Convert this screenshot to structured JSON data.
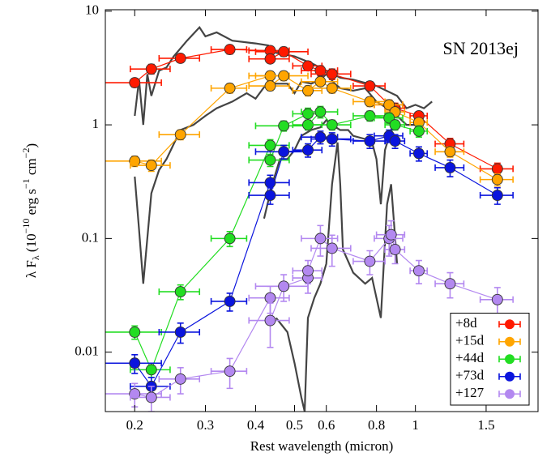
{
  "chart_data": {
    "type": "scatter",
    "annotation": "SN 2013ej",
    "xlabel": "Rest wavelength (micron)",
    "ylabel": [
      "λ F",
      "λ",
      " (10",
      "−10",
      " erg s",
      "−1",
      " cm",
      "−2",
      ")"
    ],
    "xscale": "log",
    "yscale": "log",
    "xlim": [
      0.169,
      2.02
    ],
    "ylim": [
      0.003,
      10.3
    ],
    "xticks": [
      0.2,
      0.3,
      0.4,
      0.5,
      0.6,
      0.8,
      1,
      1.5
    ],
    "yticks": [
      0.01,
      0.1,
      1,
      10
    ],
    "legend": "lower right",
    "spectra_color": "#444444",
    "spectra": [
      {
        "x": [
          0.2,
          0.205,
          0.21,
          0.215,
          0.22,
          0.23,
          0.24,
          0.25,
          0.27,
          0.29,
          0.3,
          0.32,
          0.35,
          0.4,
          0.43,
          0.45,
          0.5,
          0.55,
          0.6,
          0.65,
          0.7,
          0.8,
          0.9,
          0.95,
          1.0,
          1.05,
          1.1
        ],
        "values": [
          1.2,
          2.5,
          1.0,
          2.8,
          1.8,
          3.0,
          3.2,
          4.0,
          5.5,
          7.2,
          6.0,
          6.5,
          5.5,
          5.2,
          5.0,
          4.3,
          4.0,
          3.5,
          3.0,
          2.6,
          2.5,
          2.2,
          1.8,
          1.4,
          1.5,
          1.4,
          1.6
        ]
      },
      {
        "x": [
          0.2,
          0.205,
          0.21,
          0.22,
          0.23,
          0.24,
          0.26,
          0.28,
          0.3,
          0.32,
          0.35,
          0.38,
          0.4,
          0.43,
          0.45,
          0.48,
          0.5,
          0.52,
          0.55,
          0.58,
          0.6,
          0.63,
          0.65,
          0.7,
          0.75,
          0.8,
          0.85,
          0.9,
          0.95,
          1.0
        ],
        "values": [
          0.35,
          0.12,
          0.04,
          0.25,
          0.4,
          0.5,
          0.9,
          1.0,
          1.2,
          1.4,
          1.6,
          1.9,
          1.7,
          2.4,
          2.3,
          2.3,
          1.9,
          2.4,
          2.3,
          2.5,
          2.8,
          2.3,
          2.1,
          2.0,
          2.1,
          1.6,
          1.4,
          1.2,
          1.0,
          1.0
        ]
      },
      {
        "x": [
          0.42,
          0.44,
          0.46,
          0.48,
          0.5,
          0.52,
          0.55,
          0.58,
          0.6,
          0.62,
          0.65,
          0.68,
          0.7,
          0.75,
          0.78,
          0.8,
          0.82,
          0.84,
          0.87,
          0.9
        ],
        "values": [
          0.15,
          0.3,
          0.5,
          0.5,
          0.6,
          0.8,
          0.9,
          0.95,
          1.1,
          1.0,
          0.9,
          0.9,
          0.8,
          0.75,
          0.7,
          0.5,
          0.2,
          0.6,
          0.9,
          0.7
        ]
      },
      {
        "x": [
          0.45,
          0.48,
          0.5,
          0.52,
          0.53,
          0.54,
          0.56,
          0.58,
          0.6,
          0.62,
          0.64,
          0.65,
          0.66,
          0.7,
          0.75,
          0.78,
          0.8,
          0.82,
          0.85,
          0.87,
          0.9
        ],
        "values": [
          0.02,
          0.015,
          0.008,
          0.004,
          0.003,
          0.02,
          0.03,
          0.04,
          0.06,
          0.3,
          0.7,
          0.3,
          0.08,
          0.05,
          0.04,
          0.045,
          0.03,
          0.02,
          0.2,
          0.3,
          0.06
        ]
      }
    ],
    "series": [
      {
        "name": "+8d",
        "color": "#ff1a00",
        "x": [
          0.2,
          0.22,
          0.26,
          0.345,
          0.435,
          0.435,
          0.47,
          0.54,
          0.58,
          0.62,
          0.77,
          0.86,
          0.89,
          1.02,
          1.22,
          1.6
        ],
        "values": [
          2.35,
          3.1,
          3.85,
          4.6,
          4.5,
          3.8,
          4.4,
          3.3,
          3.0,
          2.8,
          2.2,
          1.5,
          1.4,
          1.2,
          0.68,
          0.41
        ],
        "xerr": [
          0.033,
          0.025,
          0.03,
          0.035,
          0.05,
          0.05,
          0.07,
          0.045,
          0.06,
          0.07,
          0.07,
          0.07,
          0.05,
          0.05,
          0.1,
          0.15
        ],
        "yerr": [
          0.2,
          0.3,
          0.3,
          0.4,
          0.4,
          0.3,
          0.4,
          0.3,
          0.3,
          0.3,
          0.2,
          0.15,
          0.15,
          0.1,
          0.08,
          0.05
        ]
      },
      {
        "name": "+15d",
        "color": "#ffa500",
        "x": [
          0.2,
          0.22,
          0.26,
          0.345,
          0.435,
          0.435,
          0.47,
          0.54,
          0.58,
          0.62,
          0.77,
          0.86,
          0.89,
          1.02,
          1.22,
          1.6
        ],
        "values": [
          0.48,
          0.44,
          0.82,
          2.1,
          2.7,
          2.2,
          2.7,
          2.0,
          2.4,
          2.1,
          1.6,
          1.5,
          1.3,
          1.05,
          0.58,
          0.33
        ],
        "xerr": [
          0.033,
          0.025,
          0.03,
          0.035,
          0.05,
          0.05,
          0.07,
          0.045,
          0.06,
          0.07,
          0.07,
          0.07,
          0.05,
          0.05,
          0.1,
          0.15
        ],
        "yerr": [
          0.05,
          0.05,
          0.08,
          0.2,
          0.25,
          0.2,
          0.25,
          0.2,
          0.2,
          0.2,
          0.15,
          0.15,
          0.12,
          0.1,
          0.06,
          0.04
        ]
      },
      {
        "name": "+44d",
        "color": "#22dd22",
        "x": [
          0.2,
          0.22,
          0.26,
          0.345,
          0.435,
          0.435,
          0.47,
          0.54,
          0.54,
          0.58,
          0.62,
          0.77,
          0.86,
          0.89,
          1.02
        ],
        "values": [
          0.015,
          0.007,
          0.034,
          0.1,
          0.66,
          0.49,
          0.98,
          1.25,
          1.0,
          1.3,
          1.0,
          1.2,
          1.15,
          1.0,
          0.88
        ],
        "xerr": [
          0.033,
          0.025,
          0.03,
          0.035,
          0.05,
          0.05,
          0.07,
          0.045,
          0.045,
          0.06,
          0.07,
          0.07,
          0.07,
          0.05,
          0.05
        ],
        "yerr": [
          0.002,
          0.001,
          0.005,
          0.015,
          0.08,
          0.06,
          0.1,
          0.15,
          0.1,
          0.15,
          0.1,
          0.12,
          0.12,
          0.1,
          0.1
        ]
      },
      {
        "name": "+73d",
        "color": "#0a14dd",
        "x": [
          0.2,
          0.22,
          0.26,
          0.345,
          0.435,
          0.435,
          0.47,
          0.54,
          0.58,
          0.62,
          0.77,
          0.86,
          0.89,
          1.02,
          1.22,
          1.6
        ],
        "values": [
          0.008,
          0.005,
          0.015,
          0.028,
          0.31,
          0.24,
          0.58,
          0.6,
          0.78,
          0.75,
          0.72,
          0.8,
          0.72,
          0.56,
          0.42,
          0.24
        ],
        "xerr": [
          0.033,
          0.025,
          0.03,
          0.035,
          0.05,
          0.05,
          0.07,
          0.045,
          0.06,
          0.07,
          0.07,
          0.07,
          0.05,
          0.05,
          0.1,
          0.15
        ],
        "yerr": [
          0.0015,
          0.001,
          0.003,
          0.005,
          0.05,
          0.04,
          0.08,
          0.08,
          0.1,
          0.1,
          0.1,
          0.1,
          0.1,
          0.08,
          0.07,
          0.04
        ]
      },
      {
        "name": "+127",
        "color": "#b388f0",
        "x": [
          0.2,
          0.22,
          0.26,
          0.345,
          0.435,
          0.435,
          0.47,
          0.54,
          0.54,
          0.58,
          0.62,
          0.77,
          0.86,
          0.87,
          0.89,
          1.02,
          1.22,
          1.6
        ],
        "values": [
          0.0043,
          0.004,
          0.0058,
          0.0068,
          0.03,
          0.019,
          0.038,
          0.045,
          0.052,
          0.1,
          0.082,
          0.063,
          0.1,
          0.108,
          0.08,
          0.052,
          0.04,
          0.029
        ],
        "xerr": [
          0.033,
          0.025,
          0.03,
          0.035,
          0.05,
          0.05,
          0.07,
          0.045,
          0.045,
          0.06,
          0.07,
          0.07,
          0.07,
          0.07,
          0.05,
          0.05,
          0.1,
          0.15
        ],
        "yerr": [
          0.001,
          0.001,
          0.0015,
          0.002,
          0.008,
          0.008,
          0.01,
          0.012,
          0.012,
          0.03,
          0.025,
          0.015,
          0.03,
          0.035,
          0.02,
          0.012,
          0.01,
          0.008
        ]
      }
    ]
  }
}
